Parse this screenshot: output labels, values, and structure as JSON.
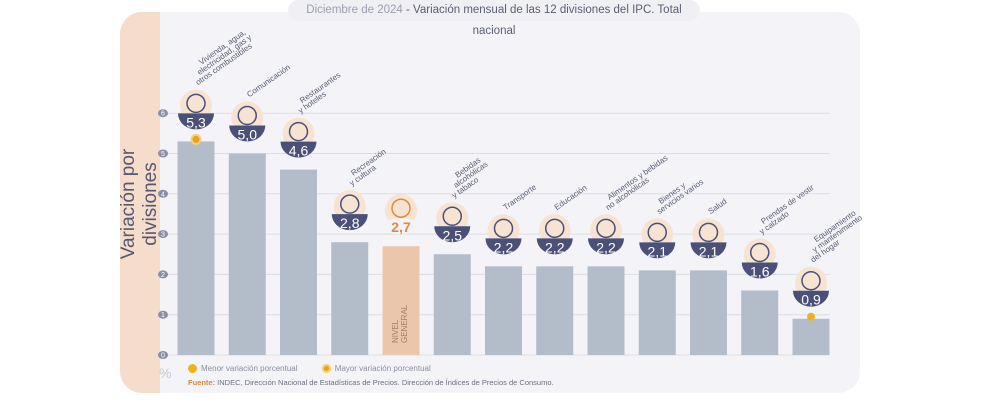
{
  "title": {
    "date": "Diciembre de 2024",
    "separator": " - ",
    "text": "Variación mensual de las 12 divisiones del IPC. Total nacional"
  },
  "chart_data": {
    "type": "bar",
    "ylabel": "Variación por divisiones",
    "yunit": "%",
    "ylim": [
      0,
      6
    ],
    "yticks": [
      0,
      1,
      2,
      3,
      4,
      5,
      6
    ],
    "grid": true,
    "categories": [
      [
        "Vivienda, agua,",
        "electricidad, gas y",
        "otros combustibles"
      ],
      [
        "Comunicación"
      ],
      [
        "Restaurantes",
        "y hoteles"
      ],
      [
        "Recreación",
        "y cultura"
      ],
      [],
      [
        "Bebidas",
        "alcohólicas",
        "y tabaco"
      ],
      [
        "Transporte"
      ],
      [
        "Educación"
      ],
      [
        "Alimentos y bebidas",
        "no alcohólicas"
      ],
      [
        "Bienes y",
        "servicios varios"
      ],
      [
        "Salud"
      ],
      [
        "Prendas de vestir",
        "y calzado"
      ],
      [
        "Equipamiento",
        "y mantenimiento",
        "del hogar"
      ]
    ],
    "values": [
      5.3,
      5.0,
      4.6,
      2.8,
      2.7,
      2.5,
      2.2,
      2.2,
      2.2,
      2.1,
      2.1,
      1.6,
      0.9
    ],
    "value_labels": [
      "5,3",
      "5,0",
      "4,6",
      "2,8",
      "2,7",
      "2,5",
      "2,2",
      "2,2",
      "2,2",
      "2,1",
      "2,1",
      "1,6",
      "0,9"
    ],
    "general_index": 4,
    "general_label": [
      "NIVEL",
      "GENERAL"
    ],
    "icons": [
      "bulb-tools-icon",
      "phone-icon",
      "plate-cutlery-icon",
      "beach-umbrella-icon",
      "basket-icon",
      "bottle-glass-icon",
      "bus-sube-icon",
      "notebook-icon",
      "chicken-food-icon",
      "comb-scissors-icon",
      "first-aid-icon",
      "tshirt-shoe-icon",
      "washing-machine-icon"
    ],
    "max_index": 0,
    "min_index": 12,
    "colors": {
      "bar": "#b3bcc9",
      "general_bar": "#ecc6aa",
      "badge": "#4a5078",
      "general_value": "#e08a3c",
      "marker": "#f2b01e"
    }
  },
  "legend": {
    "min": "Menor variación porcentual",
    "max": "Mayor variación porcentual"
  },
  "source": {
    "label": "Fuente:",
    "text": " INDEC, Dirección Nacional de Estadísticas de Precios. Dirección de Índices de Precios de Consumo."
  }
}
